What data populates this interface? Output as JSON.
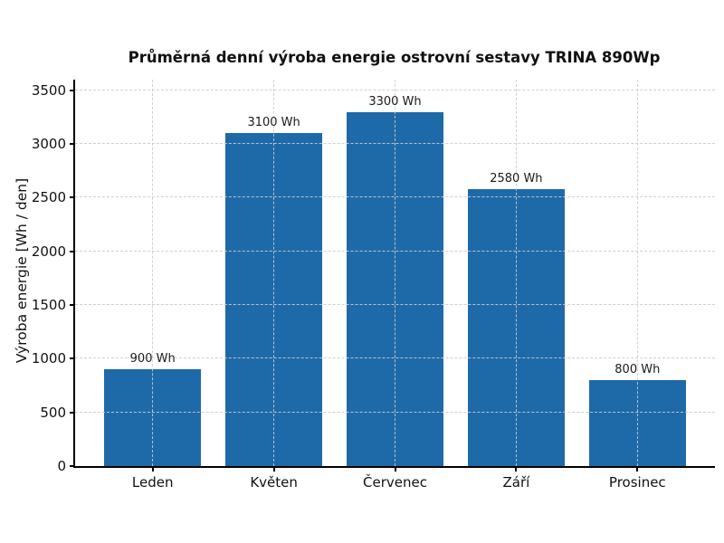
{
  "chart_data": {
    "type": "bar",
    "title": "Průměrná denní výroba energie ostrovní sestavy TRINA 890Wp",
    "ylabel": "Výroba energie [Wh / den]",
    "xlabel": "",
    "categories": [
      "Leden",
      "Květen",
      "Červenec",
      "Září",
      "Prosinec"
    ],
    "values": [
      900,
      3100,
      3300,
      2580,
      800
    ],
    "bar_labels": [
      "900 Wh",
      "3100 Wh",
      "3300 Wh",
      "2580 Wh",
      "800 Wh"
    ],
    "yticks": [
      0,
      500,
      1000,
      1500,
      2000,
      2500,
      3000,
      3500
    ],
    "ylim": [
      0,
      3600
    ],
    "grid": true,
    "grid_style": "dashed",
    "legend_position": "none",
    "colors": {
      "bar_fill": "#1e6aa9",
      "grid": "#cbcbcb",
      "axis": "#000000",
      "text": "#111111",
      "background": "#ffffff"
    }
  }
}
